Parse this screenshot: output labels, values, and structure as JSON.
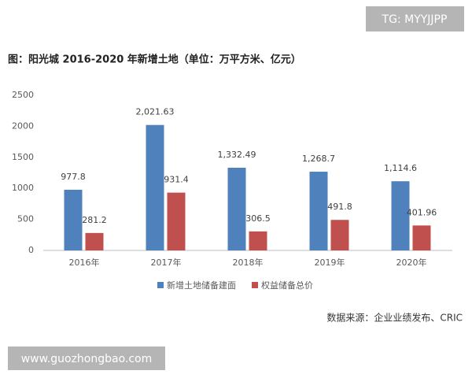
{
  "chart_data": {
    "type": "bar",
    "title": "图：阳光城 2016-2020 年新增土地（单位：万平方米、亿元）",
    "source": "数据来源：企业业绩发布、CRIC",
    "categories": [
      "2016年",
      "2017年",
      "2018年",
      "2019年",
      "2020年"
    ],
    "series": [
      {
        "name": "新增土地储备建面",
        "color": "#4f81bd",
        "values": [
          977.8,
          2021.63,
          1332.49,
          1268.7,
          1114.6
        ],
        "value_labels": [
          "977.8",
          "2,021.63",
          "1,332.49",
          "1,268.7",
          "1,114.6"
        ]
      },
      {
        "name": "权益储备总价",
        "color": "#c0504d",
        "values": [
          281.2,
          931.4,
          306.5,
          491.8,
          401.96
        ]
      }
    ],
    "ylim": [
      0,
      2500
    ],
    "yticks": [
      0,
      500,
      1000,
      1500,
      2000,
      2500
    ],
    "grid": false
  },
  "watermarks": [
    "TG: MYYJJPP",
    "www.guozhongbao.com"
  ]
}
